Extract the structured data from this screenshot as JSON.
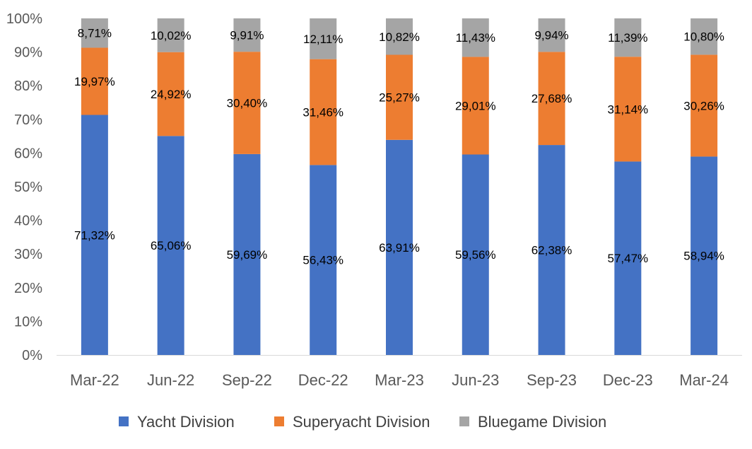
{
  "chart_data": {
    "type": "bar",
    "stacked": true,
    "categories": [
      "Mar-22",
      "Jun-22",
      "Sep-22",
      "Dec-22",
      "Mar-23",
      "Jun-23",
      "Sep-23",
      "Dec-23",
      "Mar-24"
    ],
    "series": [
      {
        "name": "Yacht Division",
        "color": "#4472C4",
        "values": [
          71.32,
          65.06,
          59.69,
          56.43,
          63.91,
          59.56,
          62.38,
          57.47,
          58.94
        ],
        "labels": [
          "71,32%",
          "65,06%",
          "59,69%",
          "56,43%",
          "63,91%",
          "59,56%",
          "62,38%",
          "57,47%",
          "58,94%"
        ]
      },
      {
        "name": "Superyacht Division",
        "color": "#ED7D31",
        "values": [
          19.97,
          24.92,
          30.4,
          31.46,
          25.27,
          29.01,
          27.68,
          31.14,
          30.26
        ],
        "labels": [
          "19,97%",
          "24,92%",
          "30,40%",
          "31,46%",
          "25,27%",
          "29,01%",
          "27,68%",
          "31,14%",
          "30,26%"
        ]
      },
      {
        "name": "Bluegame Division",
        "color": "#A5A5A5",
        "values": [
          8.71,
          10.02,
          9.91,
          12.11,
          10.82,
          11.43,
          9.94,
          11.39,
          10.8
        ],
        "labels": [
          "8,71%",
          "10,02%",
          "9,91%",
          "12,11%",
          "10,82%",
          "11,43%",
          "9,94%",
          "11,39%",
          "10,80%"
        ]
      }
    ],
    "y_ticks": [
      "0%",
      "10%",
      "20%",
      "30%",
      "40%",
      "50%",
      "60%",
      "70%",
      "80%",
      "90%",
      "100%"
    ],
    "ylim": [
      0,
      100
    ],
    "grid": false,
    "legend_position": "bottom"
  }
}
